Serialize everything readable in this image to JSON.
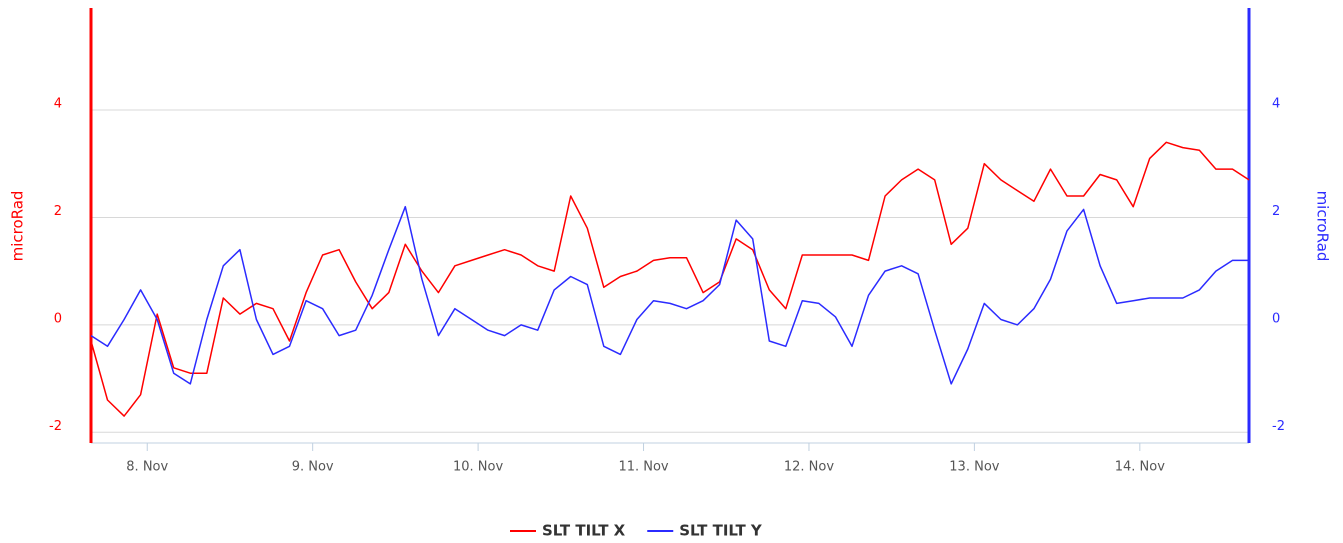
{
  "chart_data": {
    "type": "line",
    "x": [
      7.66,
      7.76,
      7.86,
      7.96,
      8.06,
      8.16,
      8.26,
      8.36,
      8.46,
      8.56,
      8.66,
      8.76,
      8.86,
      8.96,
      9.06,
      9.16,
      9.26,
      9.36,
      9.46,
      9.56,
      9.66,
      9.76,
      9.86,
      9.96,
      10.06,
      10.16,
      10.26,
      10.36,
      10.46,
      10.56,
      10.66,
      10.76,
      10.86,
      10.96,
      11.06,
      11.16,
      11.26,
      11.36,
      11.46,
      11.56,
      11.66,
      11.76,
      11.86,
      11.96,
      12.06,
      12.16,
      12.26,
      12.36,
      12.46,
      12.56,
      12.66,
      12.76,
      12.86,
      12.96,
      13.06,
      13.16,
      13.26,
      13.36,
      13.46,
      13.56,
      13.66,
      13.76,
      13.86,
      13.96,
      14.06,
      14.16,
      14.26,
      14.36,
      14.46,
      14.56,
      14.66
    ],
    "xlim": [
      7.66,
      14.66
    ],
    "xticks": [
      {
        "value": 8,
        "label": "8. Nov"
      },
      {
        "value": 9,
        "label": "9. Nov"
      },
      {
        "value": 10,
        "label": "10. Nov"
      },
      {
        "value": 11,
        "label": "11. Nov"
      },
      {
        "value": 12,
        "label": "12. Nov"
      },
      {
        "value": 13,
        "label": "13. Nov"
      },
      {
        "value": 14,
        "label": "14. Nov"
      }
    ],
    "ylabel": "microRad",
    "y2label": "microRad",
    "ylim": [
      -2.2,
      5.9
    ],
    "yticks": [
      -2,
      0,
      2,
      4
    ],
    "y2lim": [
      -2.2,
      5.9
    ],
    "y2ticks": [
      -2,
      0,
      2,
      4
    ],
    "grid": true,
    "legend": "bottom",
    "series": [
      {
        "name": "SLT TILT X",
        "color": "#ff0000",
        "axis": "y",
        "values": [
          -0.3,
          -1.4,
          -1.7,
          -1.3,
          0.2,
          -0.8,
          -0.9,
          -0.9,
          0.5,
          0.2,
          0.4,
          0.3,
          -0.3,
          0.6,
          1.3,
          1.4,
          0.8,
          0.3,
          0.6,
          1.5,
          1.0,
          0.6,
          1.1,
          1.2,
          1.3,
          1.4,
          1.3,
          1.1,
          1.0,
          2.4,
          1.8,
          0.7,
          0.9,
          1.0,
          1.2,
          1.25,
          1.25,
          0.6,
          0.8,
          1.6,
          1.4,
          0.65,
          0.3,
          1.3,
          1.3,
          1.3,
          1.3,
          1.2,
          2.4,
          2.7,
          2.9,
          2.7,
          1.5,
          1.8,
          3.0,
          2.7,
          2.5,
          2.3,
          2.9,
          2.4,
          2.4,
          2.8,
          2.7,
          2.2,
          3.1,
          3.4,
          3.3,
          3.25,
          2.9,
          2.9,
          2.7
        ]
      },
      {
        "name": "SLT TILT Y",
        "color": "#2b2bff",
        "axis": "y2",
        "values": [
          -0.2,
          -0.4,
          0.1,
          0.65,
          0.1,
          -0.9,
          -1.1,
          0.1,
          1.1,
          1.4,
          0.1,
          -0.55,
          -0.4,
          0.45,
          0.3,
          -0.2,
          -0.1,
          0.55,
          1.4,
          2.2,
          0.85,
          -0.2,
          0.3,
          0.1,
          -0.1,
          -0.2,
          0.0,
          -0.1,
          0.65,
          0.9,
          0.75,
          -0.4,
          -0.55,
          0.1,
          0.45,
          0.4,
          0.3,
          0.45,
          0.75,
          1.95,
          1.6,
          -0.3,
          -0.4,
          0.45,
          0.4,
          0.15,
          -0.4,
          0.55,
          1.0,
          1.1,
          0.95,
          -0.1,
          -1.1,
          -0.45,
          0.4,
          0.1,
          0.0,
          0.3,
          0.85,
          1.75,
          2.15,
          1.1,
          0.4,
          0.45,
          0.5,
          0.5,
          0.5,
          0.65,
          1.0,
          1.2,
          1.2
        ]
      }
    ]
  }
}
